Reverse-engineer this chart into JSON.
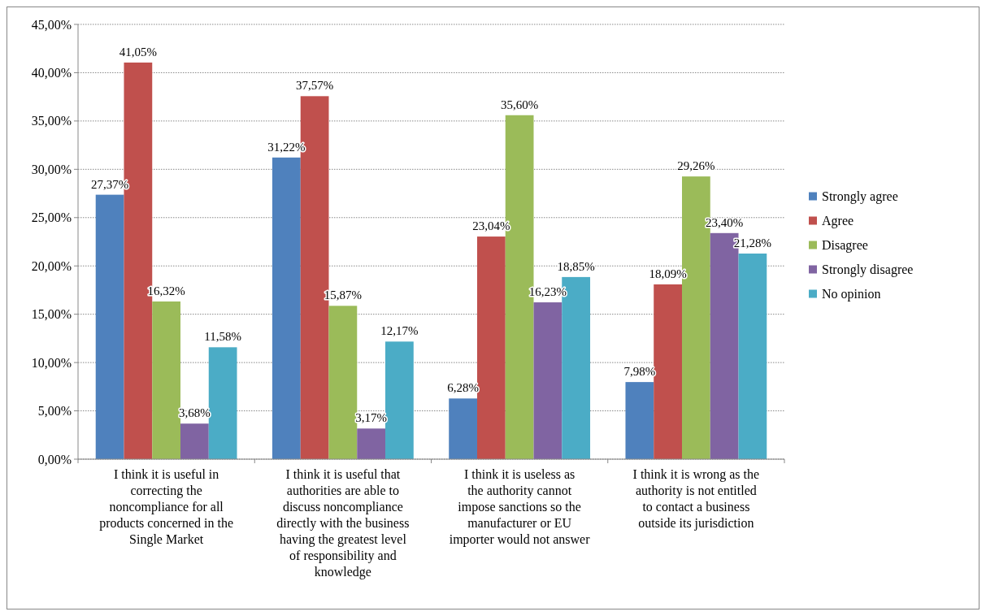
{
  "chart_data": {
    "type": "bar",
    "categories": [
      "I think it is useful in correcting the noncompliance for all products concerned in the Single Market",
      "I think it is useful that authorities are able to discuss noncompliance directly with the business having the greatest level of responsibility and knowledge",
      "I think it is useless as the authority cannot impose sanctions so the manufacturer or EU importer would not answer",
      "I think it is wrong as the authority is not entitled to contact a business outside its jurisdiction"
    ],
    "series": [
      {
        "name": "Strongly agree",
        "color": "#4f81bd",
        "values": [
          27.37,
          31.22,
          6.28,
          7.98
        ],
        "value_labels": [
          "27,37%",
          "31,22%",
          "6,28%",
          "7,98%"
        ]
      },
      {
        "name": "Agree",
        "color": "#c0504d",
        "values": [
          41.05,
          37.57,
          23.04,
          18.09
        ],
        "value_labels": [
          "41,05%",
          "37,57%",
          "23,04%",
          "18,09%"
        ]
      },
      {
        "name": "Disagree",
        "color": "#9bbb59",
        "values": [
          16.32,
          15.87,
          35.6,
          29.26
        ],
        "value_labels": [
          "16,32%",
          "15,87%",
          "35,60%",
          "29,26%"
        ]
      },
      {
        "name": "Strongly disagree",
        "color": "#8064a2",
        "values": [
          3.68,
          3.17,
          16.23,
          23.4
        ],
        "value_labels": [
          "3,68%",
          "3,17%",
          "16,23%",
          "23,40%"
        ]
      },
      {
        "name": "No opinion",
        "color": "#4bacc6",
        "values": [
          11.58,
          12.17,
          18.85,
          21.28
        ],
        "value_labels": [
          "11,58%",
          "12,17%",
          "18,85%",
          "21,28%"
        ]
      }
    ],
    "ylim": [
      0,
      45
    ],
    "yticks": [
      {
        "value": 0,
        "label": "0,00%"
      },
      {
        "value": 5,
        "label": "5,00%"
      },
      {
        "value": 10,
        "label": "10,00%"
      },
      {
        "value": 15,
        "label": "15,00%"
      },
      {
        "value": 20,
        "label": "20,00%"
      },
      {
        "value": 25,
        "label": "25,00%"
      },
      {
        "value": 30,
        "label": "30,00%"
      },
      {
        "value": 35,
        "label": "35,00%"
      },
      {
        "value": 40,
        "label": "40,00%"
      },
      {
        "value": 45,
        "label": "45,00%"
      }
    ],
    "grid": "y",
    "legend": "right"
  }
}
